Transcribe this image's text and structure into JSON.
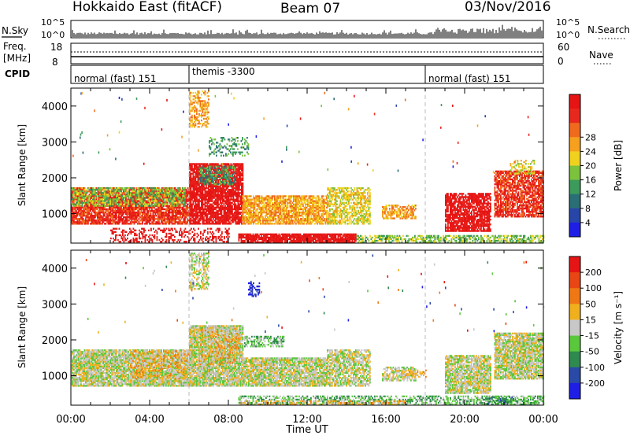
{
  "header": {
    "station": "Hokkaido East (fitACF)",
    "beam": "Beam 07",
    "date": "03/Nov/2016"
  },
  "side_labels": {
    "nsky": "N.Sky",
    "freq_line1": "Freq.",
    "freq_line2": "[MHz]",
    "cpid": "CPID",
    "nsearch": "N.Search",
    "nave": "Nave"
  },
  "strip_ticks": {
    "noise_left": [
      "10^5",
      "10^0"
    ],
    "noise_right": [
      "10^5",
      "10^0"
    ],
    "freq_left": [
      "18",
      "8"
    ],
    "nave_right": [
      "60",
      "0"
    ]
  },
  "cpid_segments": [
    {
      "label": "normal (fast) 151",
      "start_h": 0,
      "end_h": 6
    },
    {
      "label": "themis -3300",
      "start_h": 6,
      "end_h": 18
    },
    {
      "label": "normal (fast) 151",
      "start_h": 18,
      "end_h": 24
    }
  ],
  "chart_data": [
    {
      "type": "heatmap",
      "panel": "power",
      "ylabel": "Slant Range [km]",
      "xlabel": "Time UT",
      "xlim_hours": [
        0,
        24
      ],
      "ylim": [
        180,
        4500
      ],
      "yticks": [
        1000,
        2000,
        3000,
        4000
      ],
      "xtick_labels": [
        "00:00",
        "04:00",
        "08:00",
        "12:00",
        "16:00",
        "20:00",
        "00:00"
      ],
      "colorbar": {
        "label": "Power [dB]",
        "ticks": [
          "4",
          "8",
          "12",
          "16",
          "20",
          "24",
          "28"
        ],
        "colors": [
          "#1e1ee6",
          "#2846a8",
          "#2a6e76",
          "#3c9a5a",
          "#7cc23c",
          "#f0d21e",
          "#f5a01e",
          "#f06a1e",
          "#e8281e",
          "#e61414"
        ]
      },
      "regions": [
        {
          "t0": 0.0,
          "t1": 6.0,
          "r0": 700,
          "r1": 1700,
          "c": 8,
          "d": 0.85
        },
        {
          "t0": 0.0,
          "t1": 5.8,
          "r0": 1200,
          "r1": 1700,
          "c": 4,
          "d": 0.55
        },
        {
          "t0": 6.0,
          "t1": 8.7,
          "r0": 700,
          "r1": 2400,
          "c": 9,
          "d": 0.85
        },
        {
          "t0": 6.5,
          "t1": 8.3,
          "r0": 1800,
          "r1": 2300,
          "c": 3,
          "d": 0.55
        },
        {
          "t0": 6.0,
          "t1": 7.0,
          "r0": 3400,
          "r1": 4400,
          "c": 6,
          "d": 0.45
        },
        {
          "t0": 7.0,
          "t1": 9.0,
          "r0": 2600,
          "r1": 3100,
          "c": 3,
          "d": 0.3
        },
        {
          "t0": 8.7,
          "t1": 13.0,
          "r0": 700,
          "r1": 1500,
          "c": 6,
          "d": 0.8
        },
        {
          "t0": 13.0,
          "t1": 15.2,
          "r0": 700,
          "r1": 1700,
          "c": 5,
          "d": 0.6
        },
        {
          "t0": 8.5,
          "t1": 14.5,
          "r0": 180,
          "r1": 450,
          "c": 9,
          "d": 0.9
        },
        {
          "t0": 14.5,
          "t1": 24.0,
          "r0": 180,
          "r1": 400,
          "c": 4,
          "d": 0.55
        },
        {
          "t0": 15.8,
          "t1": 17.5,
          "r0": 850,
          "r1": 1250,
          "c": 6,
          "d": 0.65
        },
        {
          "t0": 19.0,
          "t1": 21.3,
          "r0": 500,
          "r1": 1550,
          "c": 9,
          "d": 0.8
        },
        {
          "t0": 21.5,
          "t1": 24.0,
          "r0": 900,
          "r1": 2200,
          "c": 8,
          "d": 0.75
        },
        {
          "t0": 22.3,
          "t1": 23.5,
          "r0": 2100,
          "r1": 2500,
          "c": 5,
          "d": 0.45
        },
        {
          "t0": 2.0,
          "t1": 8.0,
          "r0": 200,
          "r1": 600,
          "c": 9,
          "d": 0.35
        }
      ]
    },
    {
      "type": "heatmap",
      "panel": "velocity",
      "ylabel": "Slant Range [km]",
      "xlabel": "Time UT",
      "xlim_hours": [
        0,
        24
      ],
      "ylim": [
        180,
        4500
      ],
      "yticks": [
        1000,
        2000,
        3000,
        4000
      ],
      "xtick_labels": [
        "00:00",
        "04:00",
        "08:00",
        "12:00",
        "16:00",
        "20:00",
        "00:00"
      ],
      "colorbar": {
        "label": "Velocity [m s⁻¹]",
        "ticks": [
          "200",
          "100",
          "50",
          "15",
          "-15",
          "-50",
          "-100",
          "-200"
        ],
        "colors": [
          "#1e1ee6",
          "#2a4aa8",
          "#2e8a4e",
          "#5ac83c",
          "#c8c8c8",
          "#f0b01e",
          "#f07814",
          "#e84614",
          "#e61414"
        ]
      },
      "regions": [
        {
          "t0": 0.0,
          "t1": 6.0,
          "r0": 700,
          "r1": 1700,
          "c": 4,
          "d": 0.9
        },
        {
          "t0": 3.0,
          "t1": 6.0,
          "r0": 900,
          "r1": 1700,
          "c": 5,
          "d": 0.4
        },
        {
          "t0": 6.0,
          "t1": 8.7,
          "r0": 700,
          "r1": 2400,
          "c": 4,
          "d": 0.9
        },
        {
          "t0": 6.5,
          "t1": 8.5,
          "r0": 1300,
          "r1": 2300,
          "c": 5,
          "d": 0.35
        },
        {
          "t0": 6.0,
          "t1": 7.0,
          "r0": 3400,
          "r1": 4400,
          "c": 4,
          "d": 0.5
        },
        {
          "t0": 8.7,
          "t1": 13.0,
          "r0": 700,
          "r1": 1500,
          "c": 4,
          "d": 0.85
        },
        {
          "t0": 8.8,
          "t1": 10.8,
          "r0": 1800,
          "r1": 2100,
          "c": 3,
          "d": 0.55
        },
        {
          "t0": 9.0,
          "t1": 9.6,
          "r0": 3200,
          "r1": 3600,
          "c": 0,
          "d": 0.5
        },
        {
          "t0": 13.0,
          "t1": 15.2,
          "r0": 700,
          "r1": 1700,
          "c": 4,
          "d": 0.7
        },
        {
          "t0": 8.5,
          "t1": 24.0,
          "r0": 180,
          "r1": 420,
          "c": 3,
          "d": 0.55
        },
        {
          "t0": 8.5,
          "t1": 17.0,
          "r0": 180,
          "r1": 300,
          "c": 5,
          "d": 0.4
        },
        {
          "t0": 15.8,
          "t1": 17.5,
          "r0": 850,
          "r1": 1250,
          "c": 4,
          "d": 0.6
        },
        {
          "t0": 16.8,
          "t1": 18.0,
          "r0": 950,
          "r1": 1150,
          "c": 5,
          "d": 0.5
        },
        {
          "t0": 19.0,
          "t1": 21.3,
          "r0": 500,
          "r1": 1550,
          "c": 4,
          "d": 0.85
        },
        {
          "t0": 21.5,
          "t1": 24.0,
          "r0": 900,
          "r1": 2200,
          "c": 4,
          "d": 0.85
        },
        {
          "t0": 21.0,
          "t1": 22.5,
          "r0": 200,
          "r1": 400,
          "c": 2,
          "d": 0.45
        }
      ]
    }
  ]
}
